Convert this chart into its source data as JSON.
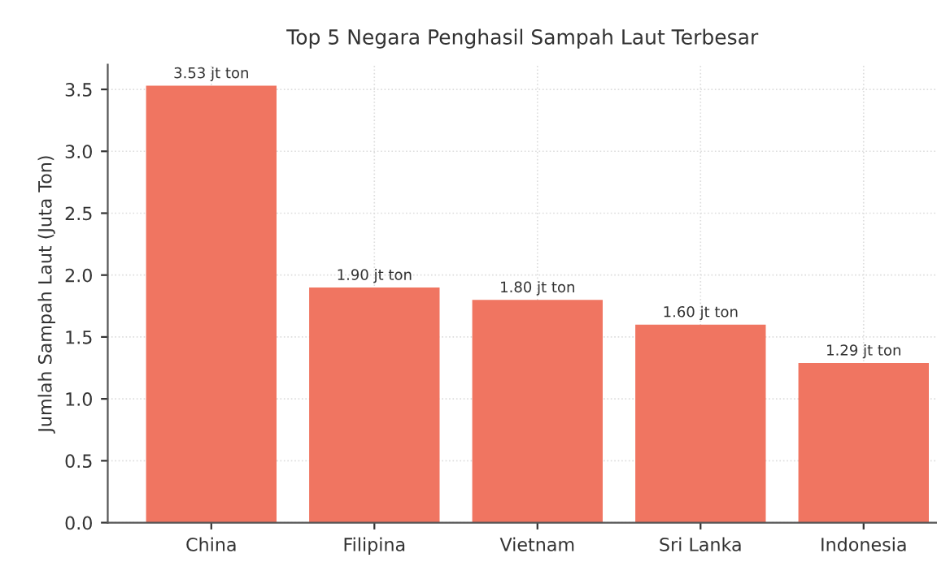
{
  "chart_data": {
    "type": "bar",
    "title": "Top 5 Negara Penghasil Sampah Laut Terbesar",
    "ylabel": "Jumlah Sampah Laut (Juta Ton)",
    "categories": [
      "China",
      "Filipina",
      "Vietnam",
      "Sri Lanka",
      "Indonesia"
    ],
    "values": [
      3.53,
      1.9,
      1.8,
      1.6,
      1.29
    ],
    "value_labels": [
      "3.53 jt ton",
      "1.90 jt ton",
      "1.80 jt ton",
      "1.60 jt ton",
      "1.29 jt ton"
    ],
    "color": "#f07561",
    "ylim": [
      0,
      3.7
    ],
    "yticks": [
      {
        "value": 0,
        "label": "0.0"
      },
      {
        "value": 0.5,
        "label": "0.5"
      },
      {
        "value": 1,
        "label": "1.0"
      },
      {
        "value": 1.5,
        "label": "1.5"
      },
      {
        "value": 2,
        "label": "2.0"
      },
      {
        "value": 2.5,
        "label": "2.5"
      },
      {
        "value": 3,
        "label": "3.0"
      },
      {
        "value": 3.5,
        "label": "3.5"
      }
    ],
    "grid": true
  }
}
